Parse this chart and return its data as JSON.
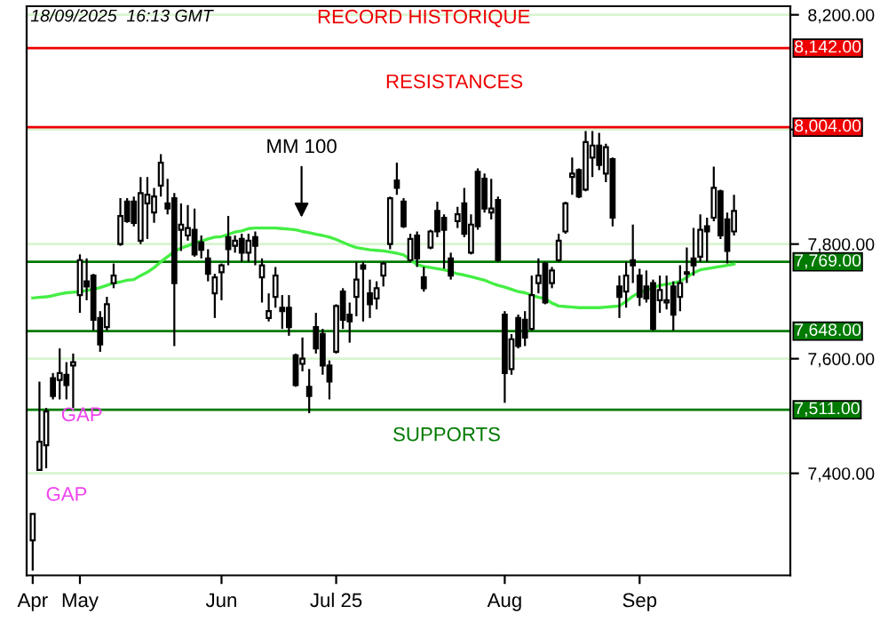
{
  "chart_data": {
    "type": "candlestick",
    "categories": [
      "Apr",
      null,
      null,
      null,
      null,
      null,
      null,
      "May",
      null,
      null,
      null,
      null,
      null,
      null,
      null,
      null,
      null,
      null,
      null,
      null,
      null,
      null,
      null,
      null,
      null,
      null,
      null,
      null,
      "Jun",
      null,
      null,
      null,
      null,
      null,
      null,
      null,
      null,
      null,
      null,
      null,
      null,
      null,
      null,
      null,
      null,
      "Jul 25",
      null,
      null,
      null,
      null,
      null,
      null,
      null,
      null,
      null,
      null,
      null,
      null,
      null,
      null,
      null,
      null,
      null,
      null,
      null,
      null,
      null,
      null,
      null,
      null,
      "Aug",
      null,
      null,
      null,
      null,
      null,
      null,
      null,
      null,
      null,
      null,
      null,
      null,
      null,
      null,
      null,
      null,
      null,
      null,
      null,
      "Sep",
      null,
      null,
      null,
      null,
      null,
      null,
      null,
      null,
      null,
      null,
      null,
      null,
      null,
      null
    ],
    "ohlc": [
      [
        7283,
        7329,
        7230,
        7329
      ],
      [
        7406,
        7560,
        7406,
        7455
      ],
      [
        7449,
        7514,
        7409,
        7508
      ],
      [
        7566,
        7575,
        7529,
        7535
      ],
      [
        7563,
        7618,
        7529,
        7575
      ],
      [
        7572,
        7594,
        7529,
        7554
      ],
      [
        7588,
        7609,
        7514,
        7594
      ],
      [
        7711,
        7782,
        7680,
        7772
      ],
      [
        7735,
        7775,
        7702,
        7726
      ],
      [
        7745,
        7748,
        7649,
        7668
      ],
      [
        7671,
        7683,
        7612,
        7625
      ],
      [
        7655,
        7708,
        7649,
        7695
      ],
      [
        7732,
        7766,
        7723,
        7745
      ],
      [
        7800,
        7880,
        7797,
        7849
      ],
      [
        7874,
        7880,
        7837,
        7840
      ],
      [
        7874,
        7883,
        7831,
        7837
      ],
      [
        7806,
        7917,
        7800,
        7889
      ],
      [
        7871,
        7917,
        7809,
        7886
      ],
      [
        7855,
        7898,
        7837,
        7883
      ],
      [
        7902,
        7957,
        7883,
        7942
      ],
      [
        7871,
        7914,
        7852,
        7862
      ],
      [
        7880,
        7889,
        7622,
        7732
      ],
      [
        7825,
        7871,
        7788,
        7834
      ],
      [
        7815,
        7868,
        7806,
        7828
      ],
      [
        7825,
        7862,
        7778,
        7782
      ],
      [
        7803,
        7815,
        7775,
        7790
      ],
      [
        7775,
        7791,
        7735,
        7748
      ],
      [
        7714,
        7748,
        7671,
        7742
      ],
      [
        7751,
        7766,
        7702,
        7763
      ],
      [
        7812,
        7849,
        7763,
        7791
      ],
      [
        7797,
        7815,
        7785,
        7806
      ],
      [
        7809,
        7818,
        7769,
        7785
      ],
      [
        7785,
        7818,
        7769,
        7806
      ],
      [
        7812,
        7822,
        7763,
        7797
      ],
      [
        7742,
        7775,
        7698,
        7763
      ],
      [
        7671,
        7714,
        7665,
        7683
      ],
      [
        7708,
        7760,
        7689,
        7745
      ],
      [
        7689,
        7711,
        7652,
        7683
      ],
      [
        7689,
        7711,
        7640,
        7655
      ],
      [
        7606,
        7609,
        7551,
        7554
      ],
      [
        7591,
        7637,
        7578,
        7600
      ],
      [
        7551,
        7582,
        7505,
        7535
      ],
      [
        7655,
        7680,
        7609,
        7618
      ],
      [
        7643,
        7652,
        7572,
        7588
      ],
      [
        7588,
        7597,
        7529,
        7560
      ],
      [
        7612,
        7695,
        7609,
        7692
      ],
      [
        7717,
        7723,
        7652,
        7668
      ],
      [
        7677,
        7698,
        7628,
        7665
      ],
      [
        7708,
        7769,
        7674,
        7738
      ],
      [
        7763,
        7769,
        7665,
        7757
      ],
      [
        7714,
        7738,
        7671,
        7695
      ],
      [
        7705,
        7735,
        7686,
        7723
      ],
      [
        7745,
        7769,
        7726,
        7766
      ],
      [
        7800,
        7883,
        7791,
        7880
      ],
      [
        7911,
        7942,
        7886,
        7898
      ],
      [
        7874,
        7880,
        7828,
        7831
      ],
      [
        7772,
        7818,
        7769,
        7809
      ],
      [
        7815,
        7822,
        7760,
        7775
      ],
      [
        7742,
        7760,
        7717,
        7723
      ],
      [
        7794,
        7825,
        7791,
        7822
      ],
      [
        7858,
        7874,
        7812,
        7822
      ],
      [
        7846,
        7852,
        7757,
        7825
      ],
      [
        7775,
        7785,
        7738,
        7745
      ],
      [
        7840,
        7865,
        7828,
        7852
      ],
      [
        7871,
        7898,
        7812,
        7818
      ],
      [
        7785,
        7852,
        7782,
        7834
      ],
      [
        7926,
        7932,
        7825,
        7831
      ],
      [
        7914,
        7923,
        7855,
        7862
      ],
      [
        7855,
        7914,
        7843,
        7862
      ],
      [
        7877,
        7883,
        7769,
        7772
      ],
      [
        7677,
        7683,
        7523,
        7575
      ],
      [
        7582,
        7643,
        7572,
        7634
      ],
      [
        7671,
        7677,
        7618,
        7622
      ],
      [
        7668,
        7683,
        7622,
        7637
      ],
      [
        7652,
        7745,
        7649,
        7711
      ],
      [
        7732,
        7775,
        7714,
        7745
      ],
      [
        7766,
        7769,
        7695,
        7698
      ],
      [
        7732,
        7760,
        7723,
        7754
      ],
      [
        7772,
        7818,
        7769,
        7806
      ],
      [
        7822,
        7874,
        7818,
        7871
      ],
      [
        7917,
        7951,
        7886,
        7923
      ],
      [
        7929,
        7932,
        7880,
        7883
      ],
      [
        7895,
        7997,
        7892,
        7978
      ],
      [
        7951,
        7997,
        7917,
        7972
      ],
      [
        7972,
        7994,
        7929,
        7938
      ],
      [
        7923,
        7975,
        7908,
        7969
      ],
      [
        7948,
        7951,
        7831,
        7846
      ],
      [
        7726,
        7745,
        7671,
        7708
      ],
      [
        7717,
        7769,
        7689,
        7745
      ],
      [
        7772,
        7834,
        7732,
        7763
      ],
      [
        7745,
        7757,
        7692,
        7708
      ],
      [
        7726,
        7754,
        7698,
        7705
      ],
      [
        7732,
        7738,
        7649,
        7652
      ],
      [
        7702,
        7745,
        7680,
        7720
      ],
      [
        7698,
        7745,
        7686,
        7702
      ],
      [
        7726,
        7735,
        7649,
        7677
      ],
      [
        7708,
        7763,
        7683,
        7732
      ],
      [
        7748,
        7794,
        7732,
        7751
      ],
      [
        7775,
        7828,
        7745,
        7763
      ],
      [
        7778,
        7852,
        7769,
        7825
      ],
      [
        7831,
        7846,
        7769,
        7822
      ],
      [
        7846,
        7935,
        7840,
        7898
      ],
      [
        7892,
        7895,
        7809,
        7815
      ],
      [
        7843,
        7855,
        7766,
        7788
      ],
      [
        7822,
        7886,
        7815,
        7858
      ]
    ],
    "color": "#000000",
    "series": [
      {
        "type": "line",
        "color": "#44ee44",
        "values": [
          7706,
          7707,
          7708,
          7710,
          7713,
          7715,
          7716,
          7717,
          7719,
          7721,
          7724,
          7728,
          7732,
          7734,
          7737,
          7738,
          7745,
          7751,
          7759,
          7769,
          7778,
          7787,
          7793,
          7797,
          7802,
          7805,
          7809,
          7812,
          7813,
          7817,
          7821,
          7823,
          7827,
          7828,
          7828,
          7828,
          7828,
          7827,
          7826,
          7825,
          7822,
          7820,
          7817,
          7815,
          7812,
          7808,
          7803,
          7798,
          7794,
          7792,
          7790,
          7789,
          7788,
          7786,
          7784,
          7781,
          7773,
          7764,
          7761,
          7759,
          7757,
          7755,
          7752,
          7748,
          7746,
          7743,
          7740,
          7737,
          7732,
          7728,
          7725,
          7721,
          7717,
          7715,
          7711,
          7707,
          7705,
          7697,
          7692,
          7691,
          7690,
          7689,
          7689,
          7689,
          7689,
          7690,
          7691,
          7692,
          7700,
          7709,
          7716,
          7719,
          7724,
          7728,
          7730,
          7732,
          7735,
          7742,
          7750,
          7755,
          7757,
          7759,
          7761,
          7763,
          7765
        ]
      }
    ],
    "ylim": [
      7222,
      8215
    ],
    "yticks": [
      {
        "value": 7400,
        "label": "7,400.00"
      },
      {
        "value": 7600,
        "label": "7,600.00"
      },
      {
        "value": 7800,
        "label": "7,800.00"
      },
      {
        "value": 8000,
        "label": null
      },
      {
        "value": 8200,
        "label": "8,200.00"
      }
    ],
    "grid": "y",
    "ref_lines": [
      {
        "axis": "y",
        "value": 8142,
        "label": "8,142.00",
        "color": "#ee0000"
      },
      {
        "axis": "y",
        "value": 8004,
        "label": "8,004.00",
        "color": "#ee0000"
      },
      {
        "axis": "y",
        "value": 7769,
        "label": "7,769.00",
        "color": "#007a00"
      },
      {
        "axis": "y",
        "value": 7648,
        "label": "7,648.00",
        "color": "#007a00"
      },
      {
        "axis": "y",
        "value": 7511,
        "label": "7,511.00",
        "color": "#007a00"
      }
    ],
    "annotations": [
      "18/09/2025  16:13 GMT",
      "RECORD HISTORIQUE",
      "RESISTANCES",
      "SUPPORTS",
      "GAP",
      "GAP",
      "MM 100"
    ]
  }
}
